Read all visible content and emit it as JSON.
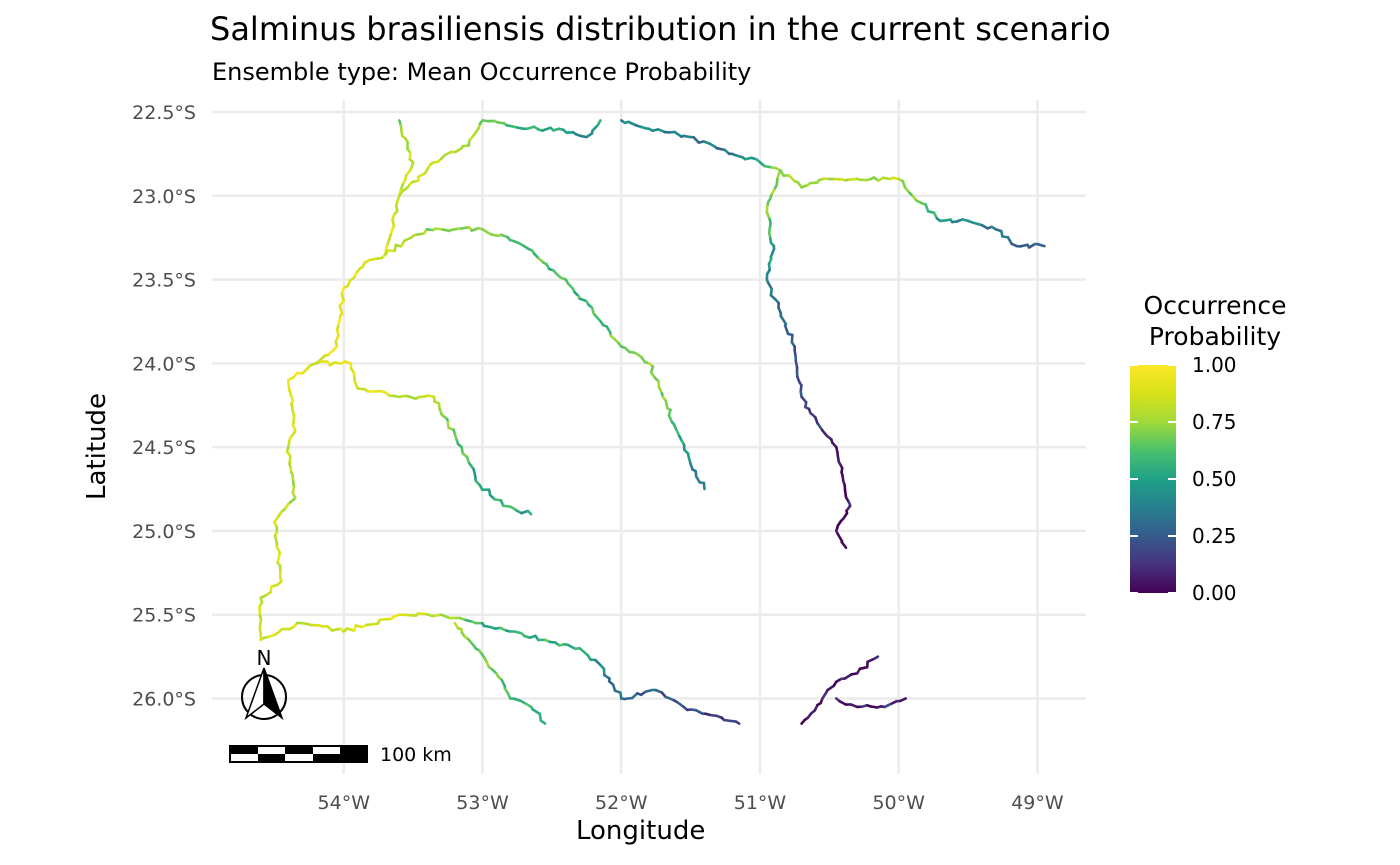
{
  "title": "Salminus brasiliensis distribution in the current scenario",
  "subtitle": "Ensemble type: Mean Occurrence Probability",
  "axes": {
    "xlabel": "Longitude",
    "ylabel": "Latitude",
    "x_ticks": [
      "54°W",
      "53°W",
      "52°W",
      "51°W",
      "50°W",
      "49°W"
    ],
    "y_ticks": [
      "22.5°S",
      "23.0°S",
      "23.5°S",
      "24.0°S",
      "24.5°S",
      "25.0°S",
      "25.5°S",
      "26.0°S"
    ]
  },
  "legend": {
    "title_line1": "Occurrence",
    "title_line2": "Probability",
    "ticks": [
      "1.00",
      "0.75",
      "0.50",
      "0.25",
      "0.00"
    ],
    "colormap": "viridis"
  },
  "north_arrow": {
    "label": "N"
  },
  "scale_bar": {
    "label": "100 km"
  },
  "colors": {
    "grid": "#ebebeb",
    "viridis_low": "#440154",
    "viridis_mid": "#21908c",
    "viridis_high": "#fde725"
  },
  "chart_data": {
    "type": "map",
    "title": "Salminus brasiliensis distribution in the current scenario",
    "xlabel": "Longitude",
    "ylabel": "Latitude",
    "xlim": [
      -54.95,
      -48.65
    ],
    "ylim": [
      -26.2,
      -22.5
    ],
    "grid": true,
    "legend_position": "right",
    "series": [
      {
        "points": [
          [
            -53.6,
            -22.55
          ],
          [
            -53.5,
            -22.8
          ],
          [
            -53.6,
            -23.0
          ],
          [
            -53.65,
            -23.2
          ],
          [
            -53.7,
            -23.35
          ],
          [
            -53.85,
            -23.4
          ],
          [
            -54.0,
            -23.55
          ],
          [
            -54.05,
            -23.9
          ],
          [
            -54.2,
            -24.0
          ],
          [
            -54.4,
            -24.1
          ],
          [
            -54.35,
            -24.4
          ],
          [
            -54.4,
            -24.5
          ],
          [
            -54.35,
            -24.8
          ],
          [
            -54.5,
            -24.95
          ],
          [
            -54.45,
            -25.3
          ],
          [
            -54.6,
            -25.4
          ],
          [
            -54.6,
            -25.65
          ]
        ],
        "values": [
          0.7,
          0.85,
          0.85,
          0.9,
          0.9,
          0.92,
          0.95,
          0.95,
          0.9,
          0.9,
          0.85,
          0.85,
          0.8,
          0.82,
          0.88,
          0.85,
          0.85
        ]
      },
      {
        "points": [
          [
            -53.6,
            -23.0
          ],
          [
            -53.35,
            -22.8
          ],
          [
            -53.1,
            -22.7
          ],
          [
            -53.0,
            -22.55
          ],
          [
            -52.7,
            -22.6
          ],
          [
            -52.45,
            -22.6
          ],
          [
            -52.25,
            -22.65
          ],
          [
            -52.15,
            -22.55
          ]
        ],
        "values": [
          0.9,
          0.85,
          0.8,
          0.7,
          0.55,
          0.5,
          0.45,
          0.5
        ]
      },
      {
        "points": [
          [
            -53.7,
            -23.35
          ],
          [
            -53.4,
            -23.2
          ],
          [
            -53.0,
            -23.2
          ],
          [
            -52.7,
            -23.3
          ],
          [
            -52.4,
            -23.5
          ],
          [
            -52.2,
            -23.7
          ],
          [
            -52.0,
            -23.9
          ],
          [
            -51.8,
            -24.0
          ],
          [
            -51.7,
            -24.2
          ],
          [
            -51.6,
            -24.4
          ],
          [
            -51.5,
            -24.6
          ],
          [
            -51.4,
            -24.75
          ]
        ],
        "values": [
          0.9,
          0.75,
          0.7,
          0.65,
          0.6,
          0.6,
          0.7,
          0.75,
          0.7,
          0.6,
          0.4,
          0.3
        ]
      },
      {
        "points": [
          [
            -54.2,
            -24.0
          ],
          [
            -53.95,
            -24.0
          ],
          [
            -53.9,
            -24.15
          ],
          [
            -53.6,
            -24.2
          ],
          [
            -53.35,
            -24.2
          ],
          [
            -53.25,
            -24.35
          ],
          [
            -53.15,
            -24.5
          ],
          [
            -53.05,
            -24.7
          ],
          [
            -52.85,
            -24.85
          ],
          [
            -52.65,
            -24.9
          ]
        ],
        "values": [
          0.9,
          0.92,
          0.9,
          0.85,
          0.8,
          0.7,
          0.65,
          0.55,
          0.6,
          0.5
        ]
      },
      {
        "points": [
          [
            -52.0,
            -22.55
          ],
          [
            -51.8,
            -22.6
          ],
          [
            -51.5,
            -22.65
          ],
          [
            -51.2,
            -22.75
          ],
          [
            -51.0,
            -22.8
          ],
          [
            -50.85,
            -22.85
          ],
          [
            -50.7,
            -22.95
          ],
          [
            -50.5,
            -22.9
          ],
          [
            -50.2,
            -22.9
          ],
          [
            -50.0,
            -22.9
          ],
          [
            -49.9,
            -23.0
          ],
          [
            -49.7,
            -23.15
          ],
          [
            -49.5,
            -23.15
          ],
          [
            -49.3,
            -23.2
          ],
          [
            -49.15,
            -23.3
          ],
          [
            -48.95,
            -23.3
          ]
        ],
        "values": [
          0.45,
          0.4,
          0.35,
          0.35,
          0.5,
          0.75,
          0.8,
          0.8,
          0.75,
          0.8,
          0.7,
          0.5,
          0.4,
          0.35,
          0.3,
          0.25
        ]
      },
      {
        "points": [
          [
            -50.85,
            -22.85
          ],
          [
            -50.95,
            -23.1
          ],
          [
            -50.9,
            -23.3
          ],
          [
            -50.95,
            -23.5
          ],
          [
            -50.85,
            -23.7
          ],
          [
            -50.75,
            -23.9
          ],
          [
            -50.7,
            -24.2
          ],
          [
            -50.55,
            -24.4
          ],
          [
            -50.45,
            -24.5
          ],
          [
            -50.4,
            -24.7
          ],
          [
            -50.35,
            -24.85
          ],
          [
            -50.45,
            -25.0
          ],
          [
            -50.38,
            -25.1
          ]
        ],
        "values": [
          0.75,
          0.7,
          0.55,
          0.4,
          0.3,
          0.25,
          0.2,
          0.15,
          0.1,
          0.05,
          0.05,
          0.02,
          0.02
        ]
      },
      {
        "points": [
          [
            -54.6,
            -25.65
          ],
          [
            -54.3,
            -25.55
          ],
          [
            -54.0,
            -25.6
          ],
          [
            -53.6,
            -25.5
          ],
          [
            -53.3,
            -25.5
          ],
          [
            -53.05,
            -25.55
          ],
          [
            -52.8,
            -25.6
          ],
          [
            -52.55,
            -25.65
          ],
          [
            -52.3,
            -25.7
          ],
          [
            -52.15,
            -25.8
          ],
          [
            -52.0,
            -26.0
          ],
          [
            -51.75,
            -25.95
          ],
          [
            -51.55,
            -26.05
          ],
          [
            -51.35,
            -26.1
          ],
          [
            -51.15,
            -26.15
          ]
        ],
        "values": [
          0.85,
          0.85,
          0.9,
          0.88,
          0.85,
          0.6,
          0.55,
          0.6,
          0.55,
          0.4,
          0.3,
          0.25,
          0.2,
          0.15,
          0.1
        ]
      },
      {
        "points": [
          [
            -53.2,
            -25.55
          ],
          [
            -53.05,
            -25.7
          ],
          [
            -52.9,
            -25.85
          ],
          [
            -52.8,
            -26.0
          ],
          [
            -52.65,
            -26.05
          ],
          [
            -52.55,
            -26.15
          ]
        ],
        "values": [
          0.75,
          0.7,
          0.65,
          0.6,
          0.6,
          0.55
        ]
      },
      {
        "points": [
          [
            -50.7,
            -26.15
          ],
          [
            -50.55,
            -26.0
          ],
          [
            -50.45,
            -25.9
          ],
          [
            -50.3,
            -25.85
          ],
          [
            -50.15,
            -25.75
          ]
        ],
        "values": [
          0.02,
          0.05,
          0.05,
          0.08,
          0.1
        ]
      },
      {
        "points": [
          [
            -50.45,
            -26.0
          ],
          [
            -50.3,
            -26.05
          ],
          [
            -50.1,
            -26.05
          ],
          [
            -49.95,
            -26.0
          ]
        ],
        "values": [
          0.05,
          0.08,
          0.1,
          0.12
        ]
      }
    ]
  }
}
